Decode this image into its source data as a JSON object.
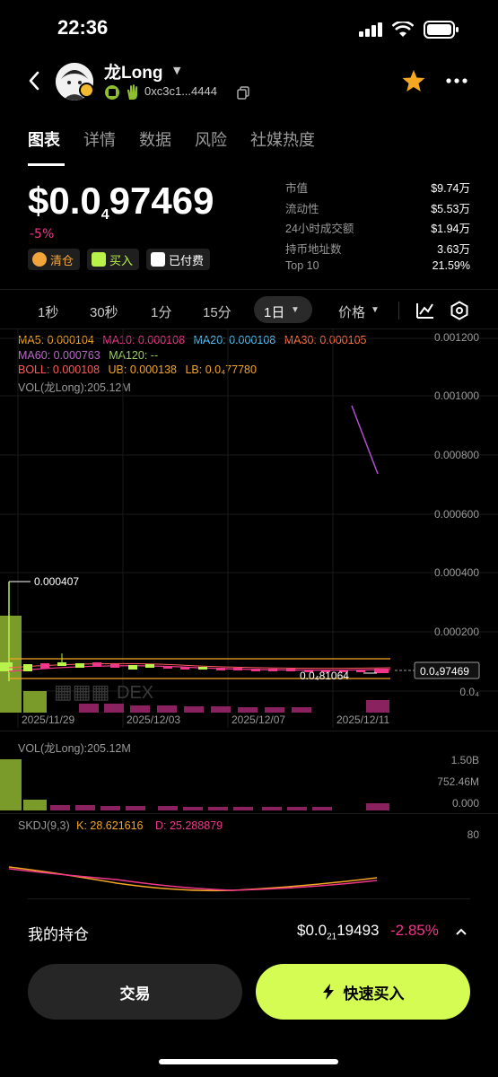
{
  "status": {
    "time": "22:36"
  },
  "token": {
    "name": "龙Long",
    "address": "0xc3c1...4444"
  },
  "tabs": [
    "图表",
    "详情",
    "数据",
    "风险",
    "社媒热度"
  ],
  "price": {
    "prefix": "$0.0",
    "sub": "4",
    "main": "97469",
    "change": "-5%"
  },
  "badges": [
    {
      "label": "清仓",
      "color": "#f2a53a"
    },
    {
      "label": "买入",
      "color": "#b7f34a"
    },
    {
      "label": "已付费",
      "color": "#ffffff"
    }
  ],
  "stats": [
    {
      "label": "市值",
      "value": "$9.74万"
    },
    {
      "label": "流动性",
      "value": "$5.53万"
    },
    {
      "label": "24小时成交额",
      "value": "$1.94万"
    },
    {
      "label": "持币地址数",
      "value": "3.63万"
    },
    {
      "label": "Top 10",
      "value": "21.59%"
    }
  ],
  "timeframes": [
    "1秒",
    "30秒",
    "1分",
    "15分",
    "1日"
  ],
  "timeframe_active": "1日",
  "price_dropdown": "价格",
  "indicators": {
    "ma5": "MA5: 0.000104",
    "ma10": "MA10: 0.000108",
    "ma20": "MA20: 0.000108",
    "ma30": "MA30: 0.000105",
    "ma60": "MA60: 0.000763",
    "ma120": "MA120: --",
    "boll": "BOLL: 0.000108",
    "ub": "UB: 0.000138",
    "lb": "LB: 0.0₄77780",
    "vol": "VOL(龙Long):205.12M"
  },
  "main_chart": {
    "yticks": [
      "0.001200",
      "0.001000",
      "0.000800",
      "0.000600",
      "0.000400",
      "0.000200"
    ],
    "high_marker": "0.000407",
    "low_marker": "0.0₄81064",
    "current_price_tag": "0.0₄97469",
    "bottom_label": "0.0₄",
    "watermark": "DEX",
    "dates": [
      "2025/11/29",
      "2025/12/03",
      "2025/12/07",
      "2025/12/11"
    ]
  },
  "vol_panel": {
    "title": "VOL(龙Long):205.12M",
    "yticks": [
      "1.50B",
      "752.46M",
      "0.000"
    ]
  },
  "skdj_panel": {
    "title": "SKDJ(9,3)",
    "k": "K: 28.621616",
    "d": "D: 25.288879",
    "ytick": "80"
  },
  "position": {
    "label": "我的持仓",
    "value_prefix": "$0.0",
    "value_sub": "21",
    "value_main": "19493",
    "change": "-2.85%"
  },
  "buttons": {
    "trade": "交易",
    "quick_buy": "快速买入"
  },
  "colors": {
    "accent": "#d4fc53",
    "down": "#f0368a",
    "up": "#8fbf2e"
  }
}
